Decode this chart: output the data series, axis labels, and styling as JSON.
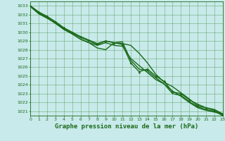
{
  "xlabel": "Graphe pression niveau de la mer (hPa)",
  "xlim": [
    0,
    23
  ],
  "ylim": [
    1020.5,
    1033.5
  ],
  "yticks": [
    1021,
    1022,
    1023,
    1024,
    1025,
    1026,
    1027,
    1028,
    1029,
    1030,
    1031,
    1032,
    1033
  ],
  "xticks": [
    0,
    1,
    2,
    3,
    4,
    5,
    6,
    7,
    8,
    9,
    10,
    11,
    12,
    13,
    14,
    15,
    16,
    17,
    18,
    19,
    20,
    21,
    22,
    23
  ],
  "bg_color": "#c8eaea",
  "grid_color": "#5a9a5a",
  "line_color": "#1a6a1a",
  "lines": [
    {
      "x": [
        0,
        1,
        2,
        3,
        4,
        5,
        6,
        7,
        8,
        9,
        10,
        11,
        12,
        13,
        14,
        15,
        16,
        17,
        18,
        19,
        20,
        21,
        22,
        23
      ],
      "y": [
        1033.0,
        1032.1,
        1031.6,
        1031.1,
        1030.4,
        1029.9,
        1029.4,
        1029.0,
        1028.6,
        1029.0,
        1028.8,
        1028.7,
        1028.5,
        1027.6,
        1026.5,
        1025.2,
        1024.3,
        1023.8,
        1023.1,
        1022.4,
        1021.6,
        1021.4,
        1021.2,
        1020.7
      ],
      "marker": null,
      "lw": 1.0
    },
    {
      "x": [
        0,
        1,
        2,
        3,
        4,
        5,
        6,
        7,
        8,
        9,
        10,
        11,
        12,
        13,
        14,
        15,
        16,
        17,
        18,
        19,
        20,
        21,
        22,
        23
      ],
      "y": [
        1033.0,
        1032.3,
        1031.8,
        1031.2,
        1030.5,
        1030.0,
        1029.5,
        1029.1,
        1028.7,
        1029.0,
        1028.8,
        1028.6,
        1026.5,
        1025.5,
        1025.8,
        1025.0,
        1024.4,
        1023.2,
        1023.0,
        1022.3,
        1021.8,
        1021.4,
        1021.1,
        1020.6
      ],
      "marker": "^",
      "lw": 1.0
    },
    {
      "x": [
        0,
        1,
        2,
        3,
        4,
        5,
        6,
        7,
        8,
        9,
        10,
        11,
        12,
        13,
        14,
        15,
        16,
        17,
        18,
        19,
        20,
        21,
        22,
        23
      ],
      "y": [
        1033.0,
        1032.2,
        1031.7,
        1031.0,
        1030.3,
        1029.8,
        1029.2,
        1028.8,
        1028.2,
        1028.0,
        1028.8,
        1028.9,
        1026.8,
        1025.8,
        1025.6,
        1024.8,
        1024.1,
        1023.0,
        1022.8,
        1022.1,
        1021.5,
        1021.2,
        1021.0,
        1020.5
      ],
      "marker": null,
      "lw": 1.0
    },
    {
      "x": [
        0,
        1,
        2,
        3,
        4,
        5,
        6,
        7,
        8,
        9,
        10,
        11,
        12,
        13,
        14,
        15,
        16,
        17,
        18,
        19,
        20,
        21,
        22,
        23
      ],
      "y": [
        1032.9,
        1032.1,
        1031.6,
        1031.0,
        1030.4,
        1029.8,
        1029.2,
        1028.8,
        1028.5,
        1028.8,
        1028.5,
        1028.4,
        1027.0,
        1026.2,
        1025.4,
        1024.6,
        1024.1,
        1023.3,
        1022.7,
        1022.0,
        1021.4,
        1021.1,
        1020.9,
        1020.7
      ],
      "marker": null,
      "lw": 1.0
    }
  ],
  "tick_color": "#1a6a1a",
  "tick_fontsize": 4.5,
  "xlabel_fontsize": 6.5,
  "spine_color": "#1a6a1a"
}
